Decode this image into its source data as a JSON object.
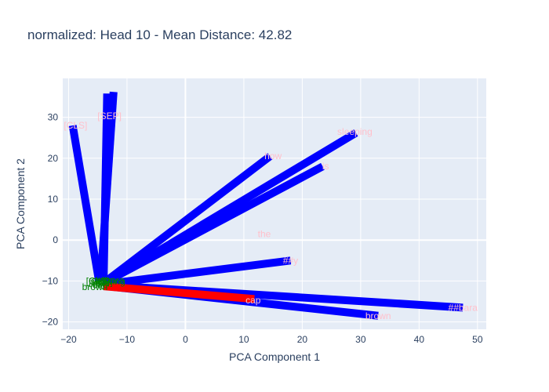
{
  "chart_data": {
    "type": "scatter",
    "title": "normalized: Head 10 - Mean Distance: 42.82",
    "xlabel": "PCA Component 1",
    "ylabel": "PCA Component 2",
    "xlim": [
      -21,
      51.5
    ],
    "ylim": [
      -21.8,
      39.5
    ],
    "xticks": [
      -20,
      -10,
      0,
      10,
      20,
      30,
      40,
      50
    ],
    "yticks": [
      -20,
      -10,
      0,
      10,
      20,
      30
    ],
    "grid": true,
    "legend": "none",
    "source_tokens": [
      {
        "text": "[CLS]",
        "x": -15,
        "y": -10
      },
      {
        "text": "[SEP]",
        "x": -14.5,
        "y": -10.2
      },
      {
        "text": "how",
        "x": -14,
        "y": -10
      },
      {
        "text": "is",
        "x": -14.8,
        "y": -10.6
      },
      {
        "text": "the",
        "x": -14.2,
        "y": -10.4
      },
      {
        "text": "brown",
        "x": -15.5,
        "y": -11.5
      },
      {
        "text": "cap",
        "x": -14.6,
        "y": -11
      },
      {
        "text": "##y",
        "x": -14.9,
        "y": -10.8
      },
      {
        "text": "##bara",
        "x": -13,
        "y": -9.8
      },
      {
        "text": "sleeping",
        "x": -13.3,
        "y": -10.1
      }
    ],
    "target_tokens": [
      {
        "text": "[CLS]",
        "x": -18.8,
        "y": 28
      },
      {
        "text": "[SEP]",
        "x": -13,
        "y": 30.3
      },
      {
        "text": "how",
        "x": 15,
        "y": 20.5
      },
      {
        "text": "is",
        "x": 24,
        "y": 18
      },
      {
        "text": "sleeping",
        "x": 29,
        "y": 26.5
      },
      {
        "text": "the",
        "x": 13.5,
        "y": 1.5
      },
      {
        "text": "##y",
        "x": 18,
        "y": -5
      },
      {
        "text": "cap",
        "x": 11.6,
        "y": -14.7
      },
      {
        "text": "##bara",
        "x": 47.5,
        "y": -16.5
      },
      {
        "text": "brown",
        "x": 33,
        "y": -18.5
      }
    ],
    "lines": [
      {
        "from": [
          -14.8,
          -10
        ],
        "to": [
          -19.3,
          28
        ],
        "color": "#0000ff"
      },
      {
        "from": [
          -14.5,
          -10
        ],
        "to": [
          -12.3,
          36.2
        ],
        "color": "#0000ff"
      },
      {
        "from": [
          -14,
          -10.2
        ],
        "to": [
          -13.4,
          35.8
        ],
        "color": "#0000ff"
      },
      {
        "from": [
          -14,
          -10.5
        ],
        "to": [
          14.5,
          20.5
        ],
        "color": "#0000ff"
      },
      {
        "from": [
          -14,
          -10.5
        ],
        "to": [
          23.5,
          18
        ],
        "color": "#0000ff"
      },
      {
        "from": [
          -13.8,
          -10.5
        ],
        "to": [
          29.2,
          26.2
        ],
        "color": "#0000ff"
      },
      {
        "from": [
          -14,
          -10.8
        ],
        "to": [
          18,
          -5
        ],
        "color": "#0000ff"
      },
      {
        "from": [
          -14,
          -11
        ],
        "to": [
          47.5,
          -16.5
        ],
        "color": "#0000ff"
      },
      {
        "from": [
          -14,
          -11.2
        ],
        "to": [
          33,
          -18.5
        ],
        "color": "#0000ff"
      },
      {
        "from": [
          -14,
          -11.3
        ],
        "to": [
          11.8,
          -14.4
        ],
        "color": "#ff0000"
      }
    ]
  }
}
